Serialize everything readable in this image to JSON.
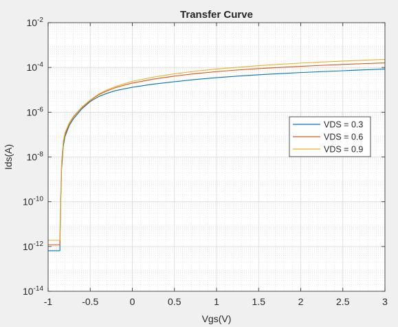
{
  "chart_data": {
    "type": "line",
    "title": "Transfer Curve",
    "xlabel": "Vgs(V)",
    "ylabel": "Ids(A)",
    "xlim": [
      -1,
      3
    ],
    "ylim": [
      1e-14,
      0.01
    ],
    "yscale": "log",
    "grid": true,
    "minor_grid": true,
    "x_ticks": [
      {
        "value": -1,
        "label": "-1"
      },
      {
        "value": -0.5,
        "label": "-0.5"
      },
      {
        "value": 0,
        "label": "0"
      },
      {
        "value": 0.5,
        "label": "0.5"
      },
      {
        "value": 1,
        "label": "1"
      },
      {
        "value": 1.5,
        "label": "1.5"
      },
      {
        "value": 2,
        "label": "2"
      },
      {
        "value": 2.5,
        "label": "2.5"
      },
      {
        "value": 3,
        "label": "3"
      }
    ],
    "y_ticks": [
      {
        "exp": -2,
        "base": "10",
        "sup": "-2"
      },
      {
        "exp": -4,
        "base": "10",
        "sup": "-4"
      },
      {
        "exp": -6,
        "base": "10",
        "sup": "-6"
      },
      {
        "exp": -8,
        "base": "10",
        "sup": "-8"
      },
      {
        "exp": -10,
        "base": "10",
        "sup": "-10"
      },
      {
        "exp": -12,
        "base": "10",
        "sup": "-12"
      },
      {
        "exp": -14,
        "base": "10",
        "sup": "-14"
      }
    ],
    "legend": {
      "location": "right"
    },
    "series": [
      {
        "name": "VDS = 0.3",
        "color": "#0072bd",
        "points": [
          [
            -1,
            6.5e-13
          ],
          [
            -0.86,
            6.5e-13
          ],
          [
            -0.86,
            1.1e-12
          ],
          [
            -0.85,
            1e-10
          ],
          [
            -0.84,
            3e-09
          ],
          [
            -0.82,
            3e-08
          ],
          [
            -0.8,
            8e-08
          ],
          [
            -0.75,
            2.5e-07
          ],
          [
            -0.7,
            5e-07
          ],
          [
            -0.6,
            1.4e-06
          ],
          [
            -0.5,
            3e-06
          ],
          [
            -0.4,
            5e-06
          ],
          [
            -0.3,
            7e-06
          ],
          [
            -0.2,
            9.2e-06
          ],
          [
            -0.1,
            1.1e-05
          ],
          [
            0,
            1.3e-05
          ],
          [
            0.25,
            1.8e-05
          ],
          [
            0.5,
            2.3e-05
          ],
          [
            0.75,
            2.9e-05
          ],
          [
            1,
            3.5e-05
          ],
          [
            1.25,
            4.1e-05
          ],
          [
            1.5,
            4.7e-05
          ],
          [
            1.75,
            5.3e-05
          ],
          [
            2,
            5.9e-05
          ],
          [
            2.25,
            6.5e-05
          ],
          [
            2.5,
            7.1e-05
          ],
          [
            2.75,
            7.8e-05
          ],
          [
            3,
            8.5e-05
          ]
        ]
      },
      {
        "name": "VDS = 0.6",
        "color": "#d95319",
        "points": [
          [
            -1,
            1.2e-12
          ],
          [
            -0.86,
            1.2e-12
          ],
          [
            -0.86,
            2e-12
          ],
          [
            -0.85,
            2e-10
          ],
          [
            -0.84,
            5e-09
          ],
          [
            -0.82,
            4e-08
          ],
          [
            -0.8,
            1e-07
          ],
          [
            -0.75,
            3e-07
          ],
          [
            -0.7,
            6e-07
          ],
          [
            -0.6,
            1.6e-06
          ],
          [
            -0.5,
            3.3e-06
          ],
          [
            -0.4,
            6e-06
          ],
          [
            -0.3,
            9e-06
          ],
          [
            -0.2,
            1.25e-05
          ],
          [
            -0.1,
            1.6e-05
          ],
          [
            0,
            2e-05
          ],
          [
            0.25,
            3e-05
          ],
          [
            0.5,
            4.1e-05
          ],
          [
            0.75,
            5.3e-05
          ],
          [
            1,
            6.5e-05
          ],
          [
            1.25,
            7.7e-05
          ],
          [
            1.5,
            8.9e-05
          ],
          [
            1.75,
            0.0001
          ],
          [
            2,
            0.000112
          ],
          [
            2.25,
            0.000124
          ],
          [
            2.5,
            0.000136
          ],
          [
            2.75,
            0.000148
          ],
          [
            3,
            0.00016
          ]
        ]
      },
      {
        "name": "VDS = 0.9",
        "color": "#edb120",
        "points": [
          [
            -1,
            1.9e-12
          ],
          [
            -0.86,
            1.9e-12
          ],
          [
            -0.86,
            3e-12
          ],
          [
            -0.85,
            3e-10
          ],
          [
            -0.84,
            6e-09
          ],
          [
            -0.82,
            5e-08
          ],
          [
            -0.8,
            1.2e-07
          ],
          [
            -0.75,
            3.3e-07
          ],
          [
            -0.7,
            6.5e-07
          ],
          [
            -0.6,
            1.7e-06
          ],
          [
            -0.5,
            3.5e-06
          ],
          [
            -0.4,
            6.5e-06
          ],
          [
            -0.3,
            1e-05
          ],
          [
            -0.2,
            1.4e-05
          ],
          [
            -0.1,
            1.85e-05
          ],
          [
            0,
            2.4e-05
          ],
          [
            0.25,
            3.7e-05
          ],
          [
            0.5,
            5.2e-05
          ],
          [
            0.75,
            6.8e-05
          ],
          [
            1,
            8.5e-05
          ],
          [
            1.25,
            0.000102
          ],
          [
            1.5,
            0.00012
          ],
          [
            1.75,
            0.000138
          ],
          [
            2,
            0.000156
          ],
          [
            2.25,
            0.000174
          ],
          [
            2.5,
            0.000192
          ],
          [
            2.75,
            0.00021
          ],
          [
            3,
            0.00023
          ]
        ]
      }
    ]
  }
}
